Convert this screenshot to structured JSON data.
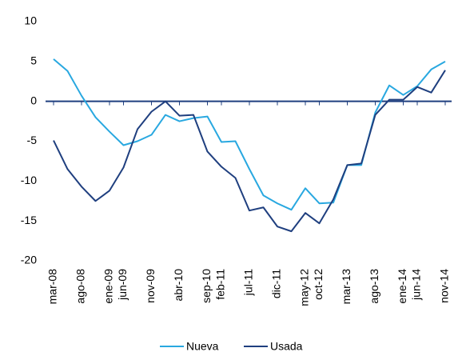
{
  "chart_data": {
    "type": "line",
    "categories": [
      "mar-08",
      null,
      "ago-08",
      null,
      "ene-09",
      "jun-09",
      null,
      "nov-09",
      null,
      "abr-10",
      null,
      "sep-10",
      "feb-11",
      null,
      "jul-11",
      null,
      "dic-11",
      null,
      "may-12",
      "oct-12",
      null,
      "mar-13",
      null,
      "ago-13",
      null,
      "ene-14",
      "jun-14",
      null,
      "nov-14"
    ],
    "series": [
      {
        "name": "Nueva",
        "color": "#29a8e0",
        "values": [
          5.3,
          3.8,
          0.7,
          -2,
          -3.8,
          -5.5,
          -5,
          -4.2,
          -1.7,
          -2.5,
          -2.1,
          -1.9,
          -5.1,
          -5,
          -8.5,
          -11.8,
          -12.8,
          -13.6,
          -10.9,
          -12.8,
          -12.7,
          -8,
          -8,
          -1.4,
          2,
          0.8,
          1.9,
          4,
          5
        ]
      },
      {
        "name": "Usada",
        "color": "#1f3f7f",
        "values": [
          -4.9,
          -8.5,
          -10.7,
          -12.5,
          -11.2,
          -8.3,
          -3.5,
          -1.3,
          0,
          -1.8,
          -1.7,
          -6.3,
          -8.2,
          -9.6,
          -13.7,
          -13.3,
          -15.7,
          -16.3,
          -14,
          -15.3,
          -12.3,
          -8,
          -7.8,
          -1.7,
          0.2,
          0.2,
          1.8,
          1.1,
          3.9
        ]
      }
    ],
    "ylim": [
      -20,
      10
    ],
    "yticks": [
      -20,
      -15,
      -10,
      -5,
      0,
      5,
      10
    ],
    "grid": false,
    "legend": "bottom"
  }
}
